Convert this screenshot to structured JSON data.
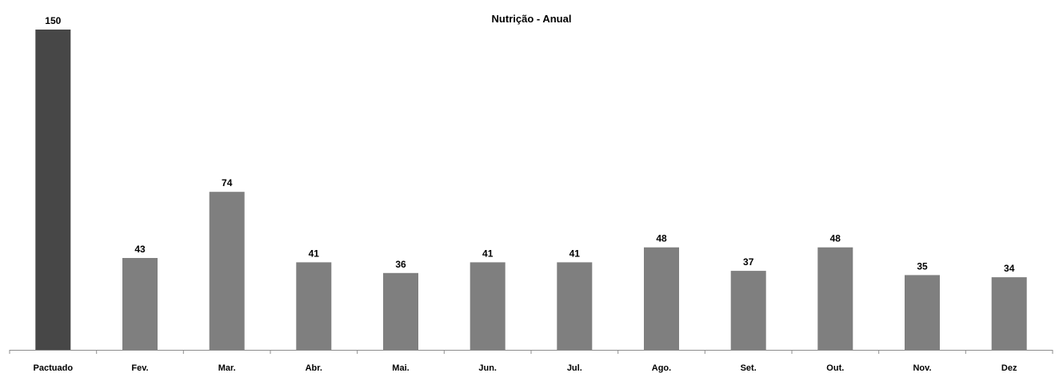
{
  "chart_data": {
    "type": "bar",
    "title": "Nutrição - Anual",
    "xlabel": "",
    "ylabel": "",
    "categories": [
      "Pactuado",
      "Fev.",
      "Mar.",
      "Abr.",
      "Mai.",
      "Jun.",
      "Jul.",
      "Ago.",
      "Set.",
      "Out.",
      "Nov.",
      "Dez"
    ],
    "values": [
      150,
      43,
      74,
      41,
      36,
      41,
      41,
      48,
      37,
      48,
      35,
      34
    ],
    "ylim": [
      0,
      150
    ],
    "grid": false,
    "legend": "none",
    "colors": {
      "target_bar": "#474747",
      "month_bar": "#7f7f7f",
      "axis": "#8c8c8c",
      "text": "#000000"
    }
  }
}
